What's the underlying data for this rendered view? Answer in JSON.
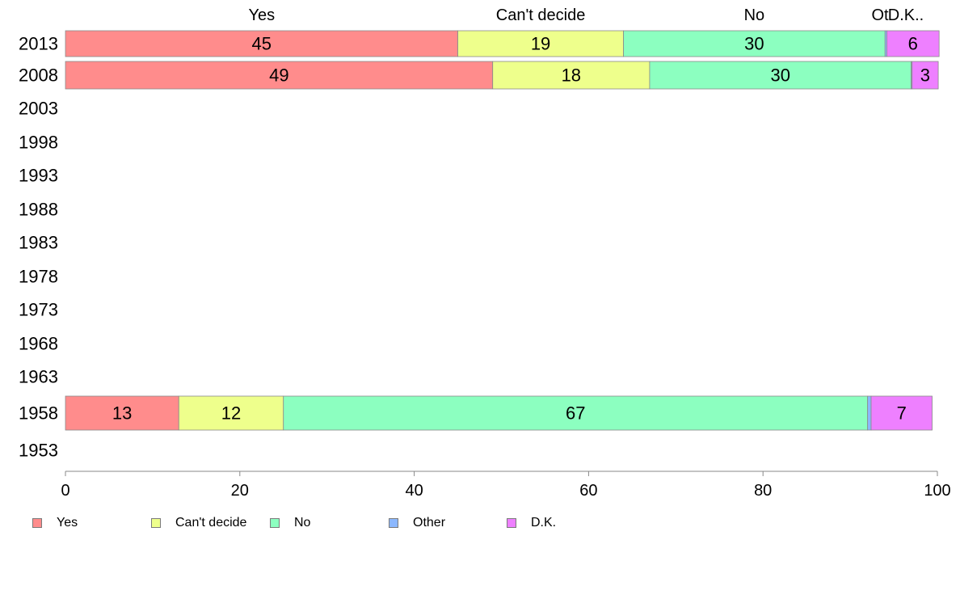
{
  "chart_data": {
    "type": "bar",
    "orientation": "horizontal",
    "stacked": true,
    "title": "",
    "xlabel": "",
    "ylabel": "",
    "xlim": [
      0,
      100
    ],
    "x_ticks": [
      0,
      20,
      40,
      60,
      80,
      100
    ],
    "categories": [
      "2013",
      "2008",
      "2003",
      "1998",
      "1993",
      "1988",
      "1983",
      "1978",
      "1973",
      "1968",
      "1963",
      "1958",
      "1953"
    ],
    "top_labels": [
      "Yes",
      "Can't decide",
      "No",
      "Ot",
      "D.K.."
    ],
    "series": [
      {
        "name": "Yes",
        "color": "#ff8c8c",
        "values": [
          45,
          49,
          null,
          null,
          null,
          null,
          null,
          null,
          null,
          null,
          null,
          13,
          null
        ]
      },
      {
        "name": "Can't decide",
        "color": "#eeff8c",
        "values": [
          19,
          18,
          null,
          null,
          null,
          null,
          null,
          null,
          null,
          null,
          null,
          12,
          null
        ]
      },
      {
        "name": "No",
        "color": "#8cffc0",
        "values": [
          30,
          30,
          null,
          null,
          null,
          null,
          null,
          null,
          null,
          null,
          null,
          67,
          null
        ]
      },
      {
        "name": "Other",
        "color": "#8cb8ff",
        "values": [
          0.2,
          0.1,
          null,
          null,
          null,
          null,
          null,
          null,
          null,
          null,
          null,
          0.4,
          null
        ]
      },
      {
        "name": "D.K.",
        "color": "#ee80ff",
        "values": [
          6,
          3,
          null,
          null,
          null,
          null,
          null,
          null,
          null,
          null,
          null,
          7,
          null
        ]
      }
    ],
    "data_labels": [
      [
        "45",
        "19",
        "30",
        "",
        "6"
      ],
      [
        "49",
        "18",
        "30",
        "",
        "3"
      ],
      null,
      null,
      null,
      null,
      null,
      null,
      null,
      null,
      null,
      [
        "13",
        "12",
        "67",
        "",
        "7"
      ],
      null
    ],
    "grid": false,
    "legend_position": "bottom"
  }
}
